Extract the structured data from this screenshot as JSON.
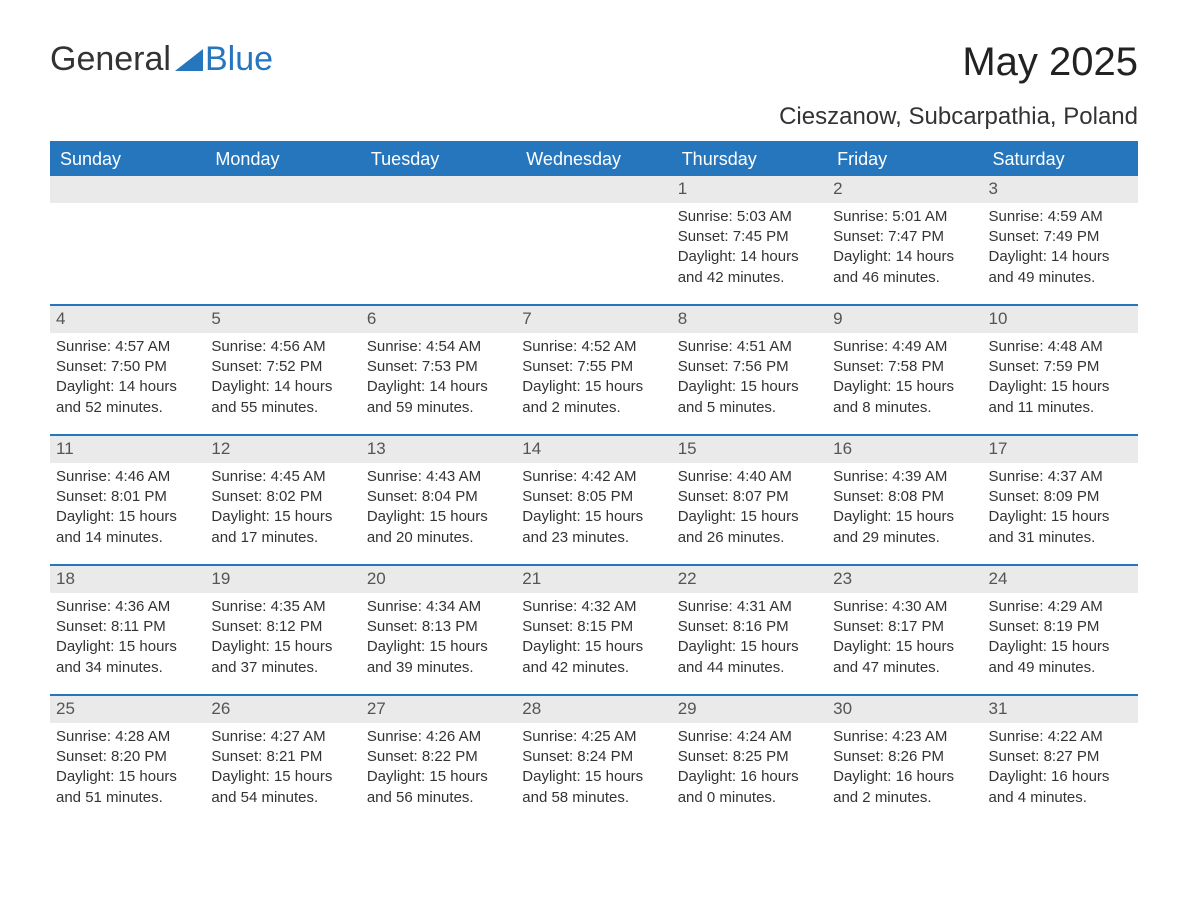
{
  "logo": {
    "text_general": "General",
    "text_blue": "Blue"
  },
  "title": "May 2025",
  "location": "Cieszanow, Subcarpathia, Poland",
  "colors": {
    "accent": "#2676bd",
    "header_text": "#ffffff",
    "daynum_bg": "#eaeaea",
    "text": "#333333",
    "bg": "#ffffff"
  },
  "weekdays": [
    "Sunday",
    "Monday",
    "Tuesday",
    "Wednesday",
    "Thursday",
    "Friday",
    "Saturday"
  ],
  "weeks": [
    [
      null,
      null,
      null,
      null,
      {
        "n": "1",
        "sunrise": "Sunrise: 5:03 AM",
        "sunset": "Sunset: 7:45 PM",
        "day1": "Daylight: 14 hours",
        "day2": "and 42 minutes."
      },
      {
        "n": "2",
        "sunrise": "Sunrise: 5:01 AM",
        "sunset": "Sunset: 7:47 PM",
        "day1": "Daylight: 14 hours",
        "day2": "and 46 minutes."
      },
      {
        "n": "3",
        "sunrise": "Sunrise: 4:59 AM",
        "sunset": "Sunset: 7:49 PM",
        "day1": "Daylight: 14 hours",
        "day2": "and 49 minutes."
      }
    ],
    [
      {
        "n": "4",
        "sunrise": "Sunrise: 4:57 AM",
        "sunset": "Sunset: 7:50 PM",
        "day1": "Daylight: 14 hours",
        "day2": "and 52 minutes."
      },
      {
        "n": "5",
        "sunrise": "Sunrise: 4:56 AM",
        "sunset": "Sunset: 7:52 PM",
        "day1": "Daylight: 14 hours",
        "day2": "and 55 minutes."
      },
      {
        "n": "6",
        "sunrise": "Sunrise: 4:54 AM",
        "sunset": "Sunset: 7:53 PM",
        "day1": "Daylight: 14 hours",
        "day2": "and 59 minutes."
      },
      {
        "n": "7",
        "sunrise": "Sunrise: 4:52 AM",
        "sunset": "Sunset: 7:55 PM",
        "day1": "Daylight: 15 hours",
        "day2": "and 2 minutes."
      },
      {
        "n": "8",
        "sunrise": "Sunrise: 4:51 AM",
        "sunset": "Sunset: 7:56 PM",
        "day1": "Daylight: 15 hours",
        "day2": "and 5 minutes."
      },
      {
        "n": "9",
        "sunrise": "Sunrise: 4:49 AM",
        "sunset": "Sunset: 7:58 PM",
        "day1": "Daylight: 15 hours",
        "day2": "and 8 minutes."
      },
      {
        "n": "10",
        "sunrise": "Sunrise: 4:48 AM",
        "sunset": "Sunset: 7:59 PM",
        "day1": "Daylight: 15 hours",
        "day2": "and 11 minutes."
      }
    ],
    [
      {
        "n": "11",
        "sunrise": "Sunrise: 4:46 AM",
        "sunset": "Sunset: 8:01 PM",
        "day1": "Daylight: 15 hours",
        "day2": "and 14 minutes."
      },
      {
        "n": "12",
        "sunrise": "Sunrise: 4:45 AM",
        "sunset": "Sunset: 8:02 PM",
        "day1": "Daylight: 15 hours",
        "day2": "and 17 minutes."
      },
      {
        "n": "13",
        "sunrise": "Sunrise: 4:43 AM",
        "sunset": "Sunset: 8:04 PM",
        "day1": "Daylight: 15 hours",
        "day2": "and 20 minutes."
      },
      {
        "n": "14",
        "sunrise": "Sunrise: 4:42 AM",
        "sunset": "Sunset: 8:05 PM",
        "day1": "Daylight: 15 hours",
        "day2": "and 23 minutes."
      },
      {
        "n": "15",
        "sunrise": "Sunrise: 4:40 AM",
        "sunset": "Sunset: 8:07 PM",
        "day1": "Daylight: 15 hours",
        "day2": "and 26 minutes."
      },
      {
        "n": "16",
        "sunrise": "Sunrise: 4:39 AM",
        "sunset": "Sunset: 8:08 PM",
        "day1": "Daylight: 15 hours",
        "day2": "and 29 minutes."
      },
      {
        "n": "17",
        "sunrise": "Sunrise: 4:37 AM",
        "sunset": "Sunset: 8:09 PM",
        "day1": "Daylight: 15 hours",
        "day2": "and 31 minutes."
      }
    ],
    [
      {
        "n": "18",
        "sunrise": "Sunrise: 4:36 AM",
        "sunset": "Sunset: 8:11 PM",
        "day1": "Daylight: 15 hours",
        "day2": "and 34 minutes."
      },
      {
        "n": "19",
        "sunrise": "Sunrise: 4:35 AM",
        "sunset": "Sunset: 8:12 PM",
        "day1": "Daylight: 15 hours",
        "day2": "and 37 minutes."
      },
      {
        "n": "20",
        "sunrise": "Sunrise: 4:34 AM",
        "sunset": "Sunset: 8:13 PM",
        "day1": "Daylight: 15 hours",
        "day2": "and 39 minutes."
      },
      {
        "n": "21",
        "sunrise": "Sunrise: 4:32 AM",
        "sunset": "Sunset: 8:15 PM",
        "day1": "Daylight: 15 hours",
        "day2": "and 42 minutes."
      },
      {
        "n": "22",
        "sunrise": "Sunrise: 4:31 AM",
        "sunset": "Sunset: 8:16 PM",
        "day1": "Daylight: 15 hours",
        "day2": "and 44 minutes."
      },
      {
        "n": "23",
        "sunrise": "Sunrise: 4:30 AM",
        "sunset": "Sunset: 8:17 PM",
        "day1": "Daylight: 15 hours",
        "day2": "and 47 minutes."
      },
      {
        "n": "24",
        "sunrise": "Sunrise: 4:29 AM",
        "sunset": "Sunset: 8:19 PM",
        "day1": "Daylight: 15 hours",
        "day2": "and 49 minutes."
      }
    ],
    [
      {
        "n": "25",
        "sunrise": "Sunrise: 4:28 AM",
        "sunset": "Sunset: 8:20 PM",
        "day1": "Daylight: 15 hours",
        "day2": "and 51 minutes."
      },
      {
        "n": "26",
        "sunrise": "Sunrise: 4:27 AM",
        "sunset": "Sunset: 8:21 PM",
        "day1": "Daylight: 15 hours",
        "day2": "and 54 minutes."
      },
      {
        "n": "27",
        "sunrise": "Sunrise: 4:26 AM",
        "sunset": "Sunset: 8:22 PM",
        "day1": "Daylight: 15 hours",
        "day2": "and 56 minutes."
      },
      {
        "n": "28",
        "sunrise": "Sunrise: 4:25 AM",
        "sunset": "Sunset: 8:24 PM",
        "day1": "Daylight: 15 hours",
        "day2": "and 58 minutes."
      },
      {
        "n": "29",
        "sunrise": "Sunrise: 4:24 AM",
        "sunset": "Sunset: 8:25 PM",
        "day1": "Daylight: 16 hours",
        "day2": "and 0 minutes."
      },
      {
        "n": "30",
        "sunrise": "Sunrise: 4:23 AM",
        "sunset": "Sunset: 8:26 PM",
        "day1": "Daylight: 16 hours",
        "day2": "and 2 minutes."
      },
      {
        "n": "31",
        "sunrise": "Sunrise: 4:22 AM",
        "sunset": "Sunset: 8:27 PM",
        "day1": "Daylight: 16 hours",
        "day2": "and 4 minutes."
      }
    ]
  ]
}
